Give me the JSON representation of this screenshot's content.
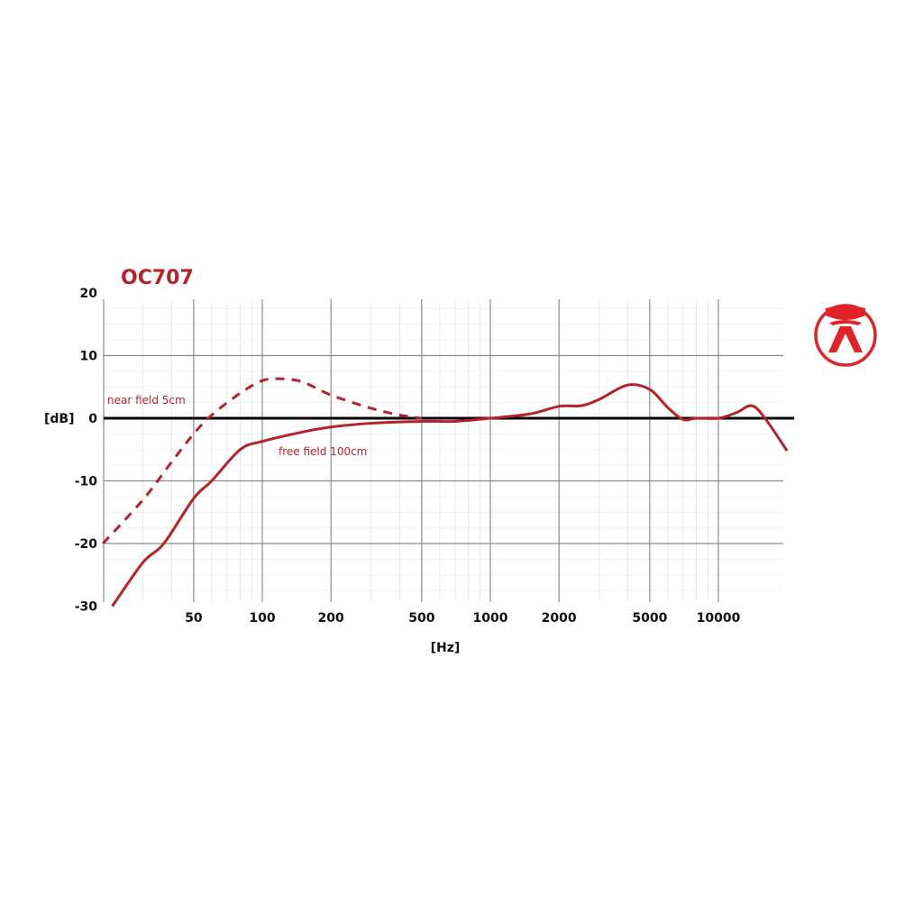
{
  "chart_data": {
    "type": "line",
    "title": "OC707",
    "xlabel": "[Hz]",
    "ylabel": "[dB]",
    "x_scale": "log",
    "xlim": [
      20,
      20000
    ],
    "ylim": [
      -30,
      20
    ],
    "x_ticks": [
      {
        "value": 50,
        "label": "50"
      },
      {
        "value": 100,
        "label": "100"
      },
      {
        "value": 200,
        "label": "200"
      },
      {
        "value": 500,
        "label": "500"
      },
      {
        "value": 1000,
        "label": "1000"
      },
      {
        "value": 2000,
        "label": "2000"
      },
      {
        "value": 5000,
        "label": "5000"
      },
      {
        "value": 10000,
        "label": "10000"
      }
    ],
    "y_ticks": [
      {
        "value": 20,
        "label": "20"
      },
      {
        "value": 10,
        "label": "10"
      },
      {
        "value": 0,
        "label": "0"
      },
      {
        "value": -10,
        "label": "-10"
      },
      {
        "value": -20,
        "label": "-20"
      },
      {
        "value": -30,
        "label": "-30"
      }
    ],
    "grid": true,
    "legend": "inline annotations",
    "series": [
      {
        "name": "near field 5cm",
        "style": "dashed",
        "x": [
          20,
          30,
          40,
          50,
          60,
          80,
          100,
          120,
          150,
          200,
          300,
          400,
          500
        ],
        "values": [
          -20,
          -13,
          -7,
          -2.5,
          0.5,
          4,
          6,
          6.3,
          5.8,
          3.7,
          1.6,
          0.5,
          0
        ]
      },
      {
        "name": "free field 100cm",
        "style": "solid",
        "x": [
          22,
          30,
          37,
          50,
          60,
          80,
          100,
          150,
          200,
          300,
          500,
          700,
          1000,
          1500,
          2000,
          2500,
          3000,
          4000,
          5000,
          6000,
          7000,
          8000,
          10000,
          12000,
          14000,
          16000,
          20000
        ],
        "values": [
          -30,
          -23,
          -20,
          -12.8,
          -10,
          -5,
          -3.7,
          -2.2,
          -1.4,
          -0.8,
          -0.5,
          -0.5,
          0,
          0.7,
          1.9,
          2.0,
          3.0,
          5.3,
          4.6,
          1.7,
          -0.2,
          0,
          0,
          0.9,
          2.0,
          0,
          -5.2
        ]
      }
    ],
    "annotations": [
      {
        "text": "near field 5cm",
        "near": "dashed curve, left"
      },
      {
        "text": "free field 100cm",
        "near": "solid curve, below 0 dB around 150-500 Hz"
      }
    ]
  },
  "colors": {
    "curve": "#b5222b",
    "title": "#b5222b",
    "logo": "#e02326",
    "zero_line": "#000000",
    "major_grid": "#8a8a8a",
    "minor_grid": "#e6e6e6"
  },
  "logo": {
    "icon": "brand-logo-icon"
  }
}
